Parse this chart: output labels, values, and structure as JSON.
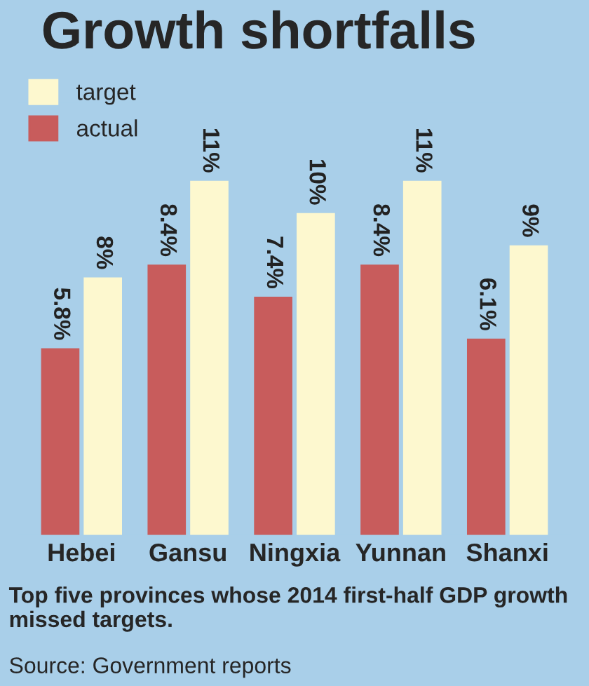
{
  "chart_data": {
    "type": "bar",
    "title": "Growth shortfalls",
    "categories": [
      "Hebei",
      "Gansu",
      "Ningxia",
      "Yunnan",
      "Shanxi"
    ],
    "series": [
      {
        "name": "actual",
        "color": "#c85c5c",
        "values": [
          5.8,
          8.4,
          7.4,
          8.4,
          6.1
        ],
        "value_labels": [
          "5.8%",
          "8.4%",
          "7.4%",
          "8.4%",
          "6.1%"
        ]
      },
      {
        "name": "target",
        "color": "#fdf8cf",
        "values": [
          8,
          11,
          10,
          11,
          9
        ],
        "value_labels": [
          "8%",
          "11%",
          "10%",
          "11%",
          "9%"
        ]
      }
    ],
    "legend": "top left",
    "grid": false,
    "annotations": [
      "Top five provinces whose 2014 first-half GDP growth missed targets.",
      "Source: Government reports"
    ]
  }
}
